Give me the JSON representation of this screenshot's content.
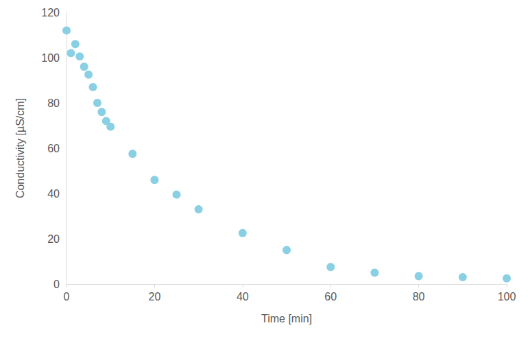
{
  "chart_data": {
    "type": "scatter",
    "xlabel": "Time [min]",
    "ylabel": "Conductivity [µS/cm]",
    "x": [
      0,
      1,
      2,
      3,
      4,
      5,
      6,
      7,
      8,
      9,
      10,
      15,
      20,
      25,
      30,
      40,
      50,
      60,
      70,
      80,
      90,
      100
    ],
    "values": [
      112,
      102,
      106,
      100.5,
      96,
      92.5,
      87,
      80,
      76,
      72,
      69.5,
      57.5,
      46,
      39.5,
      33,
      22.5,
      15,
      7.5,
      5,
      3.5,
      3,
      2.5
    ],
    "color": "#89d0e4",
    "marker": "circle",
    "xlim": [
      0,
      100
    ],
    "xticks": [
      0,
      20,
      40,
      60,
      80,
      100
    ],
    "ylim": [
      0,
      120
    ],
    "yticks": [
      0,
      20,
      40,
      60,
      80,
      100,
      120
    ],
    "grid": false
  }
}
